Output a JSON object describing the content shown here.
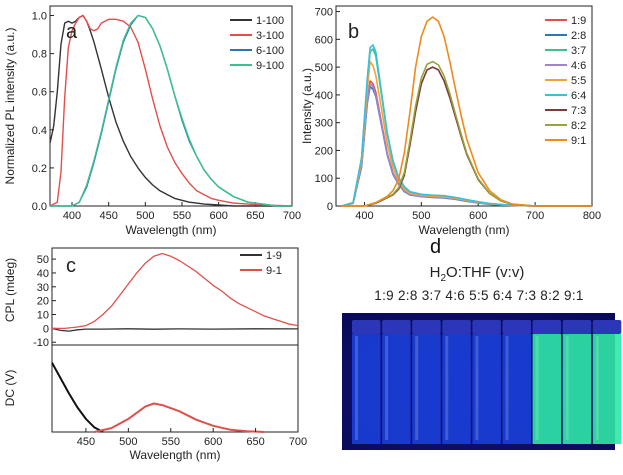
{
  "chart_data": [
    {
      "panel": "a",
      "type": "line",
      "xlabel": "Wavelength (nm)",
      "ylabel": "Normalized PL intensity (a.u.)",
      "xlim": [
        370,
        700
      ],
      "ylim": [
        0,
        1.05
      ],
      "xticks": [
        400,
        450,
        500,
        550,
        600,
        650,
        700
      ],
      "yticks": [
        0.0,
        0.2,
        0.4,
        0.6,
        0.8,
        1.0
      ],
      "legend": "top-right",
      "series": [
        {
          "name": "1-100",
          "color": "#333333",
          "x": [
            370,
            375,
            380,
            385,
            390,
            395,
            400,
            405,
            410,
            415,
            420,
            425,
            430,
            440,
            450,
            460,
            470,
            480,
            490,
            500,
            510,
            520,
            530,
            540,
            550,
            560,
            570,
            580,
            600,
            620,
            650,
            680,
            700
          ],
          "y": [
            0.33,
            0.42,
            0.6,
            0.85,
            0.96,
            0.97,
            0.96,
            0.97,
            0.99,
            1.0,
            0.97,
            0.92,
            0.86,
            0.72,
            0.57,
            0.44,
            0.34,
            0.26,
            0.2,
            0.15,
            0.11,
            0.08,
            0.06,
            0.04,
            0.03,
            0.02,
            0.015,
            0.01,
            0.005,
            0.0,
            0.0,
            0.0,
            0.0
          ]
        },
        {
          "name": "3-100",
          "color": "#e0504b",
          "x": [
            370,
            380,
            385,
            390,
            395,
            400,
            405,
            410,
            415,
            420,
            425,
            430,
            435,
            440,
            450,
            460,
            470,
            480,
            490,
            500,
            510,
            520,
            530,
            540,
            550,
            560,
            570,
            580,
            590,
            600,
            620,
            640,
            660,
            700
          ],
          "y": [
            0.0,
            0.02,
            0.18,
            0.57,
            0.83,
            0.92,
            0.96,
            0.99,
            1.0,
            0.97,
            0.93,
            0.92,
            0.93,
            0.96,
            0.98,
            0.98,
            0.97,
            0.94,
            0.86,
            0.72,
            0.56,
            0.42,
            0.31,
            0.23,
            0.17,
            0.12,
            0.08,
            0.06,
            0.04,
            0.03,
            0.015,
            0.01,
            0.005,
            0.0
          ]
        },
        {
          "name": "6-100",
          "color": "#2a77b4",
          "x": [
            370,
            400,
            410,
            420,
            430,
            440,
            450,
            460,
            470,
            480,
            490,
            500,
            510,
            520,
            530,
            540,
            550,
            560,
            570,
            580,
            590,
            600,
            620,
            640,
            660,
            680,
            700
          ],
          "y": [
            0.0,
            0.0,
            0.02,
            0.1,
            0.23,
            0.38,
            0.55,
            0.72,
            0.86,
            0.95,
            1.0,
            0.99,
            0.93,
            0.84,
            0.72,
            0.58,
            0.45,
            0.34,
            0.26,
            0.19,
            0.14,
            0.1,
            0.05,
            0.02,
            0.01,
            0.0,
            0.0
          ]
        },
        {
          "name": "9-100",
          "color": "#3cc08e",
          "x": [
            370,
            400,
            410,
            420,
            430,
            440,
            450,
            460,
            470,
            480,
            490,
            500,
            510,
            520,
            530,
            540,
            550,
            560,
            570,
            580,
            590,
            600,
            620,
            640,
            660,
            680,
            700
          ],
          "y": [
            0.0,
            0.0,
            0.02,
            0.11,
            0.24,
            0.39,
            0.56,
            0.73,
            0.87,
            0.96,
            1.0,
            0.99,
            0.93,
            0.84,
            0.72,
            0.58,
            0.46,
            0.35,
            0.26,
            0.19,
            0.14,
            0.1,
            0.05,
            0.02,
            0.01,
            0.0,
            0.0
          ]
        }
      ]
    },
    {
      "panel": "b",
      "type": "line",
      "xlabel": "Wavelength (nm)",
      "ylabel": "Intensity (a.u.)",
      "xlim": [
        350,
        800
      ],
      "ylim": [
        0,
        720
      ],
      "xticks": [
        400,
        500,
        600,
        700,
        800
      ],
      "yticks": [
        0,
        100,
        200,
        300,
        400,
        500,
        600,
        700
      ],
      "legend": "top-right",
      "series": [
        {
          "name": "1:9",
          "color": "#e0504b",
          "x": [
            360,
            380,
            395,
            405,
            410,
            415,
            420,
            430,
            440,
            450,
            460,
            470,
            480,
            500,
            520,
            540,
            560,
            580,
            600,
            620,
            650,
            700,
            800
          ],
          "y": [
            0,
            10,
            150,
            380,
            450,
            440,
            410,
            300,
            190,
            120,
            80,
            55,
            42,
            35,
            32,
            30,
            25,
            18,
            12,
            7,
            3,
            0,
            0
          ]
        },
        {
          "name": "2:8",
          "color": "#2a77b4",
          "x": [
            360,
            380,
            395,
            405,
            410,
            415,
            420,
            430,
            440,
            450,
            460,
            470,
            480,
            500,
            520,
            540,
            560,
            580,
            600,
            620,
            650,
            700,
            800
          ],
          "y": [
            0,
            10,
            140,
            370,
            430,
            420,
            395,
            290,
            185,
            115,
            78,
            52,
            40,
            34,
            31,
            29,
            24,
            17,
            11,
            6,
            3,
            0,
            0
          ]
        },
        {
          "name": "3:7",
          "color": "#3cc08e",
          "x": [
            360,
            380,
            395,
            405,
            410,
            415,
            420,
            430,
            440,
            450,
            460,
            470,
            480,
            500,
            520,
            540,
            560,
            580,
            600,
            620,
            650,
            700,
            800
          ],
          "y": [
            0,
            12,
            170,
            450,
            555,
            565,
            540,
            400,
            260,
            160,
            100,
            68,
            50,
            40,
            37,
            35,
            30,
            22,
            15,
            9,
            4,
            0,
            0
          ]
        },
        {
          "name": "4:6",
          "color": "#a084c6",
          "x": [
            360,
            380,
            395,
            405,
            410,
            415,
            420,
            430,
            440,
            450,
            460,
            470,
            480,
            500,
            520,
            540,
            560,
            580,
            600,
            620,
            650,
            700,
            800
          ],
          "y": [
            0,
            10,
            145,
            375,
            440,
            430,
            400,
            295,
            188,
            118,
            80,
            54,
            41,
            35,
            32,
            30,
            25,
            18,
            12,
            7,
            3,
            0,
            0
          ]
        },
        {
          "name": "5:5",
          "color": "#f2a23a",
          "x": [
            360,
            380,
            395,
            405,
            410,
            415,
            420,
            430,
            440,
            450,
            460,
            470,
            480,
            500,
            520,
            540,
            560,
            580,
            600,
            620,
            650,
            700,
            800
          ],
          "y": [
            0,
            12,
            160,
            420,
            520,
            505,
            470,
            350,
            225,
            140,
            90,
            60,
            45,
            38,
            35,
            33,
            28,
            20,
            13,
            8,
            3,
            0,
            0
          ]
        },
        {
          "name": "6:4",
          "color": "#3bbfd6",
          "x": [
            360,
            380,
            395,
            405,
            410,
            415,
            420,
            430,
            440,
            450,
            460,
            470,
            480,
            500,
            520,
            540,
            560,
            580,
            600,
            620,
            650,
            700,
            800
          ],
          "y": [
            0,
            12,
            175,
            460,
            570,
            580,
            555,
            410,
            265,
            165,
            103,
            70,
            52,
            42,
            39,
            37,
            31,
            23,
            15,
            9,
            4,
            0,
            0
          ]
        },
        {
          "name": "7:3",
          "color": "#7a3b3b",
          "x": [
            360,
            400,
            420,
            440,
            450,
            460,
            470,
            480,
            490,
            500,
            510,
            520,
            530,
            540,
            550,
            560,
            570,
            580,
            600,
            620,
            640,
            660,
            700,
            800
          ],
          "y": [
            0,
            0,
            10,
            30,
            40,
            60,
            110,
            220,
            340,
            440,
            490,
            500,
            490,
            450,
            390,
            320,
            250,
            185,
            95,
            45,
            18,
            6,
            0,
            0
          ]
        },
        {
          "name": "8:2",
          "color": "#9aa33a",
          "x": [
            360,
            400,
            420,
            440,
            450,
            460,
            470,
            480,
            490,
            500,
            510,
            520,
            530,
            540,
            550,
            560,
            570,
            580,
            600,
            620,
            640,
            660,
            700,
            800
          ],
          "y": [
            0,
            0,
            12,
            32,
            42,
            65,
            120,
            235,
            360,
            460,
            510,
            520,
            508,
            468,
            405,
            330,
            258,
            190,
            98,
            46,
            18,
            6,
            0,
            0
          ]
        },
        {
          "name": "9:1",
          "color": "#f08a1c",
          "x": [
            360,
            400,
            420,
            440,
            450,
            460,
            470,
            480,
            490,
            500,
            510,
            520,
            530,
            540,
            550,
            560,
            570,
            580,
            600,
            620,
            640,
            660,
            700,
            800
          ],
          "y": [
            0,
            0,
            12,
            35,
            55,
            95,
            190,
            340,
            500,
            610,
            665,
            680,
            665,
            610,
            520,
            420,
            325,
            240,
            120,
            55,
            22,
            7,
            0,
            0
          ]
        }
      ]
    },
    {
      "panel": "c",
      "type": "line",
      "xlabel": "Wavelength (nm)",
      "ylabel_top": "CPL (mdeg)",
      "ylabel_bottom": "DC (V)",
      "xlim": [
        410,
        700
      ],
      "ylim_cpl": [
        -12,
        58
      ],
      "xticks": [
        450,
        500,
        550,
        600,
        650,
        700
      ],
      "yticks_cpl": [
        -10,
        0,
        10,
        20,
        30,
        40,
        50
      ],
      "legend": "top-right",
      "series": [
        {
          "name": "1-9",
          "color": "#333333",
          "x": [
            410,
            420,
            430,
            440,
            450,
            470,
            500,
            530,
            560,
            600,
            650,
            700
          ],
          "y": [
            0,
            -1.5,
            -2,
            -1,
            -0.5,
            -0.5,
            -0.3,
            -0.6,
            -0.4,
            -0.5,
            -0.3,
            -0.4
          ]
        },
        {
          "name": "9-1",
          "color": "#e0504b",
          "x": [
            410,
            425,
            440,
            450,
            460,
            470,
            480,
            490,
            500,
            510,
            520,
            530,
            540,
            550,
            560,
            570,
            580,
            590,
            600,
            610,
            620,
            630,
            640,
            650,
            660,
            670,
            680,
            690,
            700
          ],
          "y": [
            0,
            0,
            1,
            2,
            5,
            10,
            16,
            24,
            32,
            40,
            47,
            52,
            54,
            52,
            49,
            45,
            41,
            36,
            31,
            27,
            22,
            18,
            15,
            12,
            9,
            7,
            5,
            3,
            2
          ]
        }
      ],
      "dc_series": [
        {
          "name": "1-9",
          "color": "#111111",
          "x": [
            410,
            420,
            430,
            440,
            450,
            460,
            470
          ],
          "y": [
            0.9,
            0.7,
            0.5,
            0.32,
            0.17,
            0.06,
            0.0
          ]
        },
        {
          "name": "9-1",
          "color": "#e0504b",
          "x": [
            460,
            480,
            500,
            520,
            530,
            540,
            560,
            580,
            600,
            620,
            640,
            660
          ],
          "y": [
            0.0,
            0.05,
            0.17,
            0.33,
            0.37,
            0.35,
            0.27,
            0.16,
            0.08,
            0.03,
            0.01,
            0.0
          ]
        }
      ]
    }
  ],
  "panel_letters": {
    "a": "a",
    "b": "b",
    "c": "c",
    "d": "d"
  },
  "photo": {
    "title_pre": "H",
    "title_sub": "2",
    "title_post": "O:THF (v:v)",
    "ratios": "1:9 2:8 3:7 4:6 5:5 6:4 7:3 8:2 9:1",
    "vial_colors": [
      "#1a3fd8",
      "#1a3fd8",
      "#1a3fd8",
      "#1a3fd8",
      "#1a3fd8",
      "#1a3fd8",
      "#2fe7a6",
      "#2fe7a6",
      "#2fe7a6"
    ],
    "background": "#0a0a5a"
  }
}
